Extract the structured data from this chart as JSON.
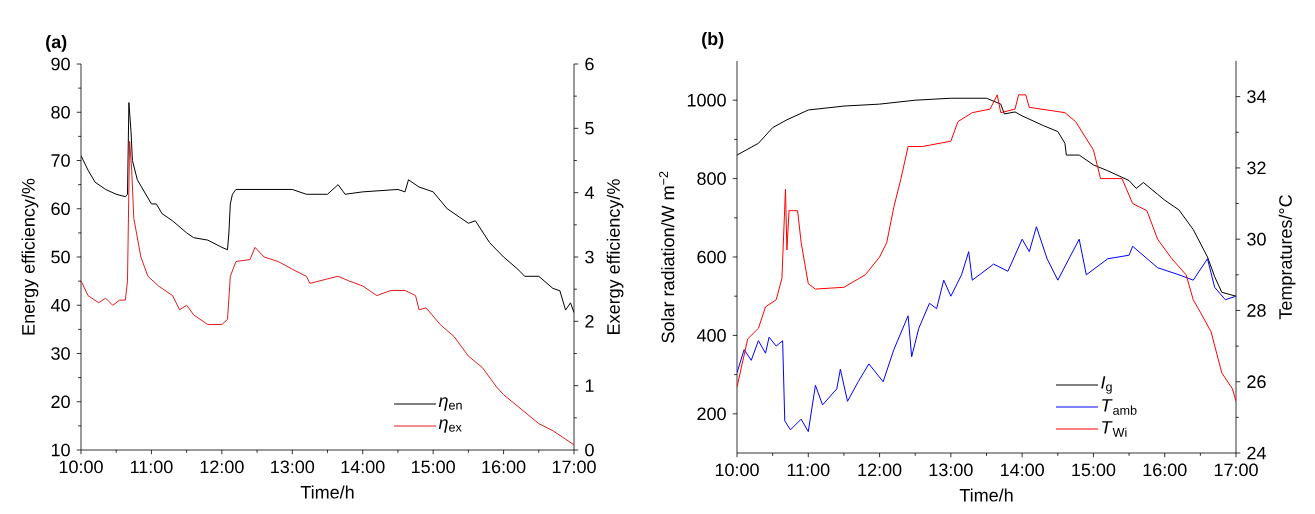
{
  "chart_data": [
    {
      "type": "line",
      "title": "(a)",
      "xlabel": "Time/h",
      "ylabel": "Energy efficiency/%",
      "y2label": "Exergy efficiency/%",
      "xlim": [
        10,
        17
      ],
      "ylim": [
        10,
        90
      ],
      "y2lim": [
        0,
        6
      ],
      "xticks": [
        {
          "value": 10,
          "label": "10:00"
        },
        {
          "value": 11,
          "label": "11:00"
        },
        {
          "value": 12,
          "label": "12:00"
        },
        {
          "value": 13,
          "label": "13:00"
        },
        {
          "value": 14,
          "label": "14:00"
        },
        {
          "value": 15,
          "label": "15:00"
        },
        {
          "value": 16,
          "label": "16:00"
        },
        {
          "value": 17,
          "label": "17:00"
        }
      ],
      "yticks": [
        10,
        20,
        30,
        40,
        50,
        60,
        70,
        80,
        90
      ],
      "y2ticks": [
        0,
        1,
        2,
        3,
        4,
        5,
        6
      ],
      "legend": "bottom right",
      "series": [
        {
          "name": "*η*$_{en}$",
          "color": "#000000",
          "x": [
            10.0,
            10.1,
            10.2,
            10.35,
            10.5,
            10.63,
            10.66,
            10.68,
            10.71,
            10.73,
            10.8,
            10.9,
            11.0,
            11.07,
            11.15,
            11.3,
            11.5,
            11.6,
            11.8,
            12.0,
            12.08,
            12.1,
            12.12,
            12.15,
            12.2,
            12.5,
            13.0,
            13.2,
            13.5,
            13.65,
            13.75,
            14.0,
            14.5,
            14.6,
            14.65,
            14.8,
            15.0,
            15.2,
            15.5,
            15.6,
            15.8,
            16.0,
            16.2,
            16.3,
            16.5,
            16.7,
            16.8,
            16.88,
            16.95,
            17.0
          ],
          "values": [
            71,
            68,
            65.5,
            64,
            63,
            62.5,
            63,
            82,
            76,
            70,
            66,
            63.5,
            61,
            61,
            59,
            57.5,
            55,
            54,
            53.5,
            52,
            51.5,
            55,
            61,
            63,
            64,
            64,
            64,
            63,
            63,
            65,
            63,
            63.5,
            64,
            63.5,
            66,
            64.5,
            63.5,
            60,
            57,
            57.5,
            53,
            50,
            47.5,
            46,
            46,
            43.5,
            43,
            39,
            40.5,
            38.5
          ]
        },
        {
          "name": "*η*$_{ex}$",
          "color": "#e31a1c",
          "axis": "y2",
          "x": [
            10.0,
            10.1,
            10.25,
            10.35,
            10.45,
            10.55,
            10.63,
            10.66,
            10.69,
            10.72,
            10.75,
            10.85,
            10.95,
            11.1,
            11.3,
            11.4,
            11.5,
            11.6,
            11.8,
            12.0,
            12.08,
            12.12,
            12.2,
            12.4,
            12.47,
            12.6,
            12.8,
            13.0,
            13.2,
            13.25,
            13.5,
            13.65,
            13.8,
            14.0,
            14.2,
            14.4,
            14.6,
            14.75,
            14.8,
            14.9,
            15.1,
            15.3,
            15.5,
            15.7,
            15.9,
            16.0,
            16.2,
            16.5,
            16.7,
            17.0
          ],
          "values": [
            2.63,
            2.4,
            2.29,
            2.36,
            2.25,
            2.33,
            2.33,
            2.63,
            4.8,
            4.35,
            3.6,
            3.0,
            2.7,
            2.55,
            2.4,
            2.18,
            2.25,
            2.1,
            1.95,
            1.95,
            2.03,
            2.7,
            2.93,
            2.96,
            3.15,
            3.0,
            2.93,
            2.81,
            2.7,
            2.59,
            2.66,
            2.7,
            2.63,
            2.55,
            2.4,
            2.48,
            2.48,
            2.4,
            2.18,
            2.21,
            1.95,
            1.76,
            1.46,
            1.28,
            0.98,
            0.86,
            0.68,
            0.41,
            0.3,
            0.08
          ]
        }
      ]
    },
    {
      "type": "line",
      "title": "(b)",
      "xlabel": "Time/h",
      "ylabel": "Solar radiation/W m$^{−2}$",
      "y2label": "Tempratures/°C",
      "xlim": [
        10,
        17
      ],
      "ylim": [
        100,
        1100
      ],
      "y2lim": [
        24,
        35
      ],
      "xticks": [
        {
          "value": 10,
          "label": "10:00"
        },
        {
          "value": 11,
          "label": "11:00"
        },
        {
          "value": 12,
          "label": "12:00"
        },
        {
          "value": 13,
          "label": "13:00"
        },
        {
          "value": 14,
          "label": "14:00"
        },
        {
          "value": 15,
          "label": "15:00"
        },
        {
          "value": 16,
          "label": "16:00"
        },
        {
          "value": 17,
          "label": "17:00"
        }
      ],
      "yticks": [
        200,
        400,
        600,
        800,
        1000
      ],
      "y2ticks": [
        24,
        26,
        28,
        30,
        32,
        34
      ],
      "legend": "bottom right",
      "series": [
        {
          "name": "*I*$_{g}$",
          "color": "#000000",
          "x": [
            10.0,
            10.3,
            10.5,
            10.7,
            11.0,
            11.5,
            12.0,
            12.5,
            13.0,
            13.5,
            13.7,
            13.75,
            13.9,
            14.0,
            14.3,
            14.5,
            14.6,
            14.62,
            14.8,
            15.0,
            15.2,
            15.5,
            15.6,
            15.7,
            15.9,
            16.0,
            16.2,
            16.4,
            16.6,
            16.7,
            16.8,
            17.0
          ],
          "values": [
            860,
            890,
            930,
            950,
            975,
            985,
            990,
            1000,
            1005,
            1005,
            990,
            965,
            970,
            960,
            935,
            920,
            890,
            860,
            860,
            835,
            820,
            795,
            775,
            790,
            760,
            745,
            720,
            670,
            600,
            550,
            510,
            500
          ]
        },
        {
          "name": "*T*$_{amb}$",
          "color": "#0000ff",
          "axis": "y2",
          "x": [
            10.0,
            10.1,
            10.2,
            10.3,
            10.4,
            10.45,
            10.55,
            10.64,
            10.67,
            10.75,
            10.9,
            11.0,
            11.1,
            11.2,
            11.4,
            11.45,
            11.55,
            11.7,
            11.85,
            12.05,
            12.2,
            12.4,
            12.45,
            12.55,
            12.7,
            12.8,
            12.9,
            13.0,
            13.15,
            13.25,
            13.3,
            13.6,
            13.8,
            14.0,
            14.1,
            14.2,
            14.35,
            14.5,
            14.8,
            14.9,
            15.2,
            15.5,
            15.55,
            15.9,
            16.2,
            16.4,
            16.6,
            16.7,
            16.85,
            17.0
          ],
          "values": [
            26.25,
            26.9,
            26.6,
            27.15,
            26.8,
            27.25,
            27.0,
            27.15,
            24.9,
            24.65,
            24.95,
            24.6,
            25.9,
            25.35,
            25.8,
            26.35,
            25.45,
            26.0,
            26.5,
            26.0,
            26.9,
            27.85,
            26.7,
            27.5,
            28.2,
            28.05,
            28.85,
            28.4,
            29.0,
            29.65,
            28.85,
            29.3,
            29.1,
            30.0,
            29.65,
            30.35,
            29.45,
            28.85,
            30.0,
            29.0,
            29.45,
            29.55,
            29.8,
            29.2,
            29.0,
            28.85,
            29.45,
            28.65,
            28.3,
            28.4
          ]
        },
        {
          "name": "*T*$_{Wi}$",
          "color": "#ff0000",
          "axis": "y2",
          "x": [
            10.0,
            10.15,
            10.3,
            10.4,
            10.55,
            10.63,
            10.68,
            10.7,
            10.73,
            10.85,
            10.9,
            11.0,
            11.1,
            11.5,
            11.8,
            12.0,
            12.1,
            12.2,
            12.3,
            12.4,
            12.6,
            13.0,
            13.1,
            13.3,
            13.55,
            13.65,
            13.7,
            13.9,
            13.95,
            14.05,
            14.1,
            14.6,
            14.75,
            15.0,
            15.1,
            15.4,
            15.55,
            15.75,
            15.9,
            16.1,
            16.3,
            16.4,
            16.5,
            16.65,
            16.8,
            16.95,
            17.0
          ],
          "values": [
            25.85,
            27.2,
            27.5,
            28.1,
            28.3,
            28.9,
            31.4,
            29.7,
            30.8,
            30.8,
            29.9,
            28.75,
            28.6,
            28.65,
            29.0,
            29.5,
            29.9,
            30.9,
            31.7,
            32.6,
            32.6,
            32.75,
            33.3,
            33.55,
            33.65,
            34.05,
            33.55,
            33.65,
            34.05,
            34.05,
            33.7,
            33.55,
            33.3,
            32.5,
            31.7,
            31.7,
            31.0,
            30.8,
            30.0,
            29.45,
            29.0,
            28.3,
            27.95,
            27.4,
            26.25,
            25.8,
            25.45
          ]
        }
      ]
    }
  ]
}
